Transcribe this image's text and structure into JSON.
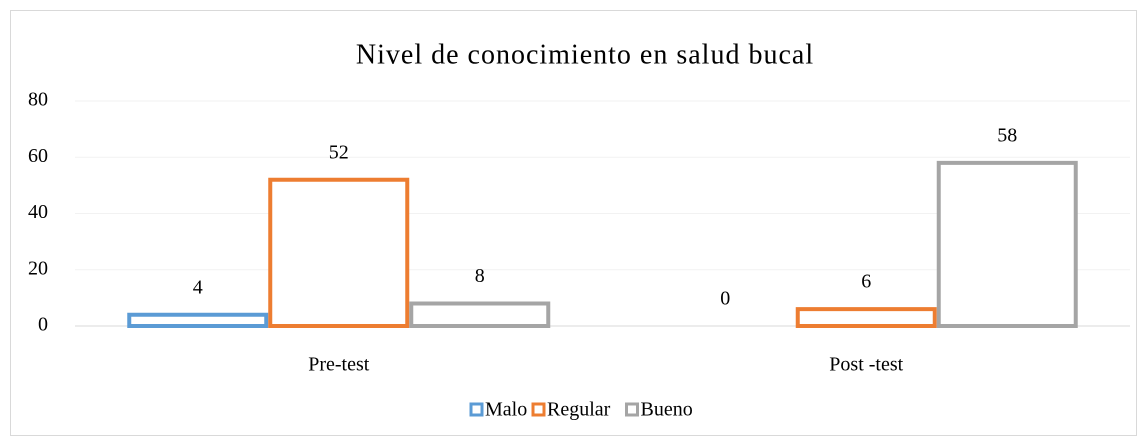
{
  "chart_data": {
    "type": "bar",
    "title": "Nivel de conocimiento en salud bucal",
    "categories": [
      "Pre-test",
      "Post -test"
    ],
    "series": [
      {
        "name": "Malo",
        "color": "#5b9bd5",
        "values": [
          4,
          0
        ]
      },
      {
        "name": "Regular",
        "color": "#ed7d31",
        "values": [
          52,
          6
        ]
      },
      {
        "name": "Bueno",
        "color": "#a5a5a5",
        "values": [
          8,
          58
        ]
      }
    ],
    "ylim": [
      0,
      80
    ],
    "yticks": [
      0,
      20,
      40,
      60,
      80
    ],
    "grid": true,
    "legend": "bottom"
  }
}
